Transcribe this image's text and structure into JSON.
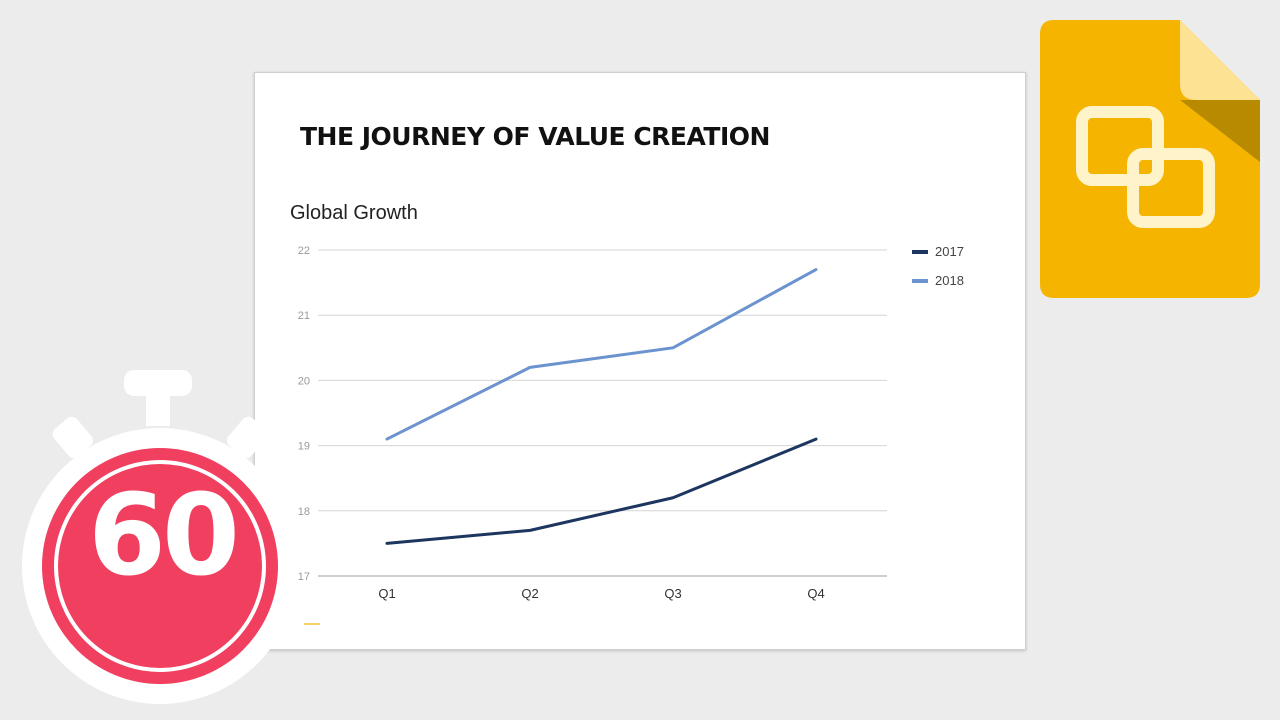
{
  "slide": {
    "title": "THE JOURNEY OF VALUE CREATION"
  },
  "timer": {
    "value": "60",
    "color": "#f03f5f"
  },
  "logo": {
    "icon": "google-slides-icon",
    "color": "#f4b400"
  },
  "chart_data": {
    "type": "line",
    "title": "Global Growth",
    "categories": [
      "Q1",
      "Q2",
      "Q3",
      "Q4"
    ],
    "series": [
      {
        "name": "2017",
        "values": [
          17.5,
          17.7,
          18.2,
          19.1
        ],
        "color": "#1c3660"
      },
      {
        "name": "2018",
        "values": [
          19.1,
          20.2,
          20.5,
          21.7
        ],
        "color": "#6a93cf"
      }
    ],
    "ylim": [
      17,
      22
    ],
    "yticks": [
      17,
      18,
      19,
      20,
      21,
      22
    ],
    "grid": true,
    "legend": "right"
  }
}
